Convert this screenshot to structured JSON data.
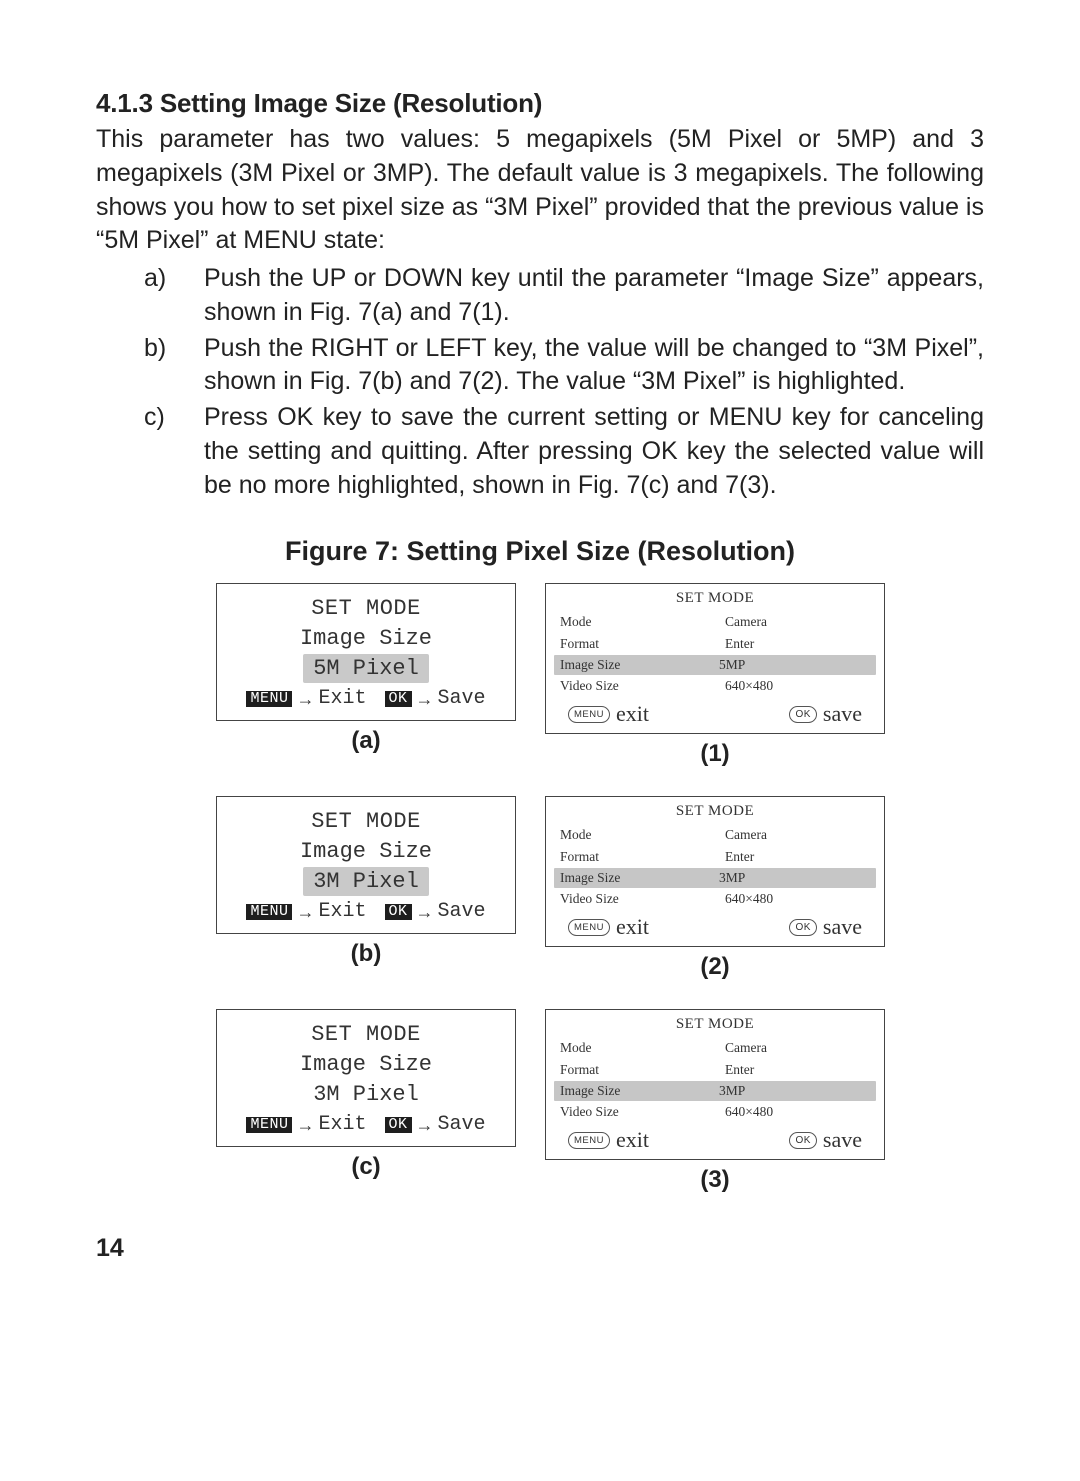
{
  "heading": "4.1.3 Setting Image Size (Resolution)",
  "intro": "This parameter has two values: 5 megapixels (5M Pixel or 5MP) and 3 megapixels (3M Pixel or 3MP). The default value is 3 megapixels. The following shows you how to set pixel size as “3M Pixel” provided that the previous value is “5M Pixel” at MENU state:",
  "steps": {
    "a": {
      "marker": "a)",
      "text": "Push the UP or DOWN key until the parameter “Image Size” appears, shown in Fig. 7(a) and 7(1)."
    },
    "b": {
      "marker": "b)",
      "text": "Push the RIGHT or LEFT key, the value will be changed to “3M Pixel”, shown in Fig. 7(b) and 7(2). The value “3M Pixel” is highlighted."
    },
    "c": {
      "marker": "c)",
      "text": "Press OK key to save the current setting or MENU key for canceling the setting and quitting. After pressing OK key the selected value will be no more highlighted, shown in Fig. 7(c) and 7(3)."
    }
  },
  "figure_caption": "Figure 7: Setting Pixel Size (Resolution)",
  "panelLabels": {
    "a": "(a)",
    "b": "(b)",
    "c": "(c)",
    "n1": "(1)",
    "n2": "(2)",
    "n3": "(3)"
  },
  "screenA": {
    "title": "SET MODE",
    "param": "Image Size",
    "val_a": "5M Pixel",
    "val_b": "3M Pixel",
    "val_c": "3M Pixel",
    "menu_btn": "MENU",
    "ok_btn": "OK",
    "exit": "Exit",
    "save": "Save"
  },
  "screenB": {
    "title": "SET MODE",
    "rows": {
      "mode_k": "Mode",
      "mode_v": "Camera",
      "format_k": "Format",
      "format_v": "Enter",
      "imgsize_k": "Image Size",
      "imgsize_v1": "5MP",
      "imgsize_v2": "3MP",
      "imgsize_v3": "3MP",
      "vidsize_k": "Video Size",
      "vidsize_v": "640×480"
    },
    "menu_pill": "MENU",
    "ok_pill": "OK",
    "exit": "exit",
    "save": "save"
  },
  "page_number": "14"
}
